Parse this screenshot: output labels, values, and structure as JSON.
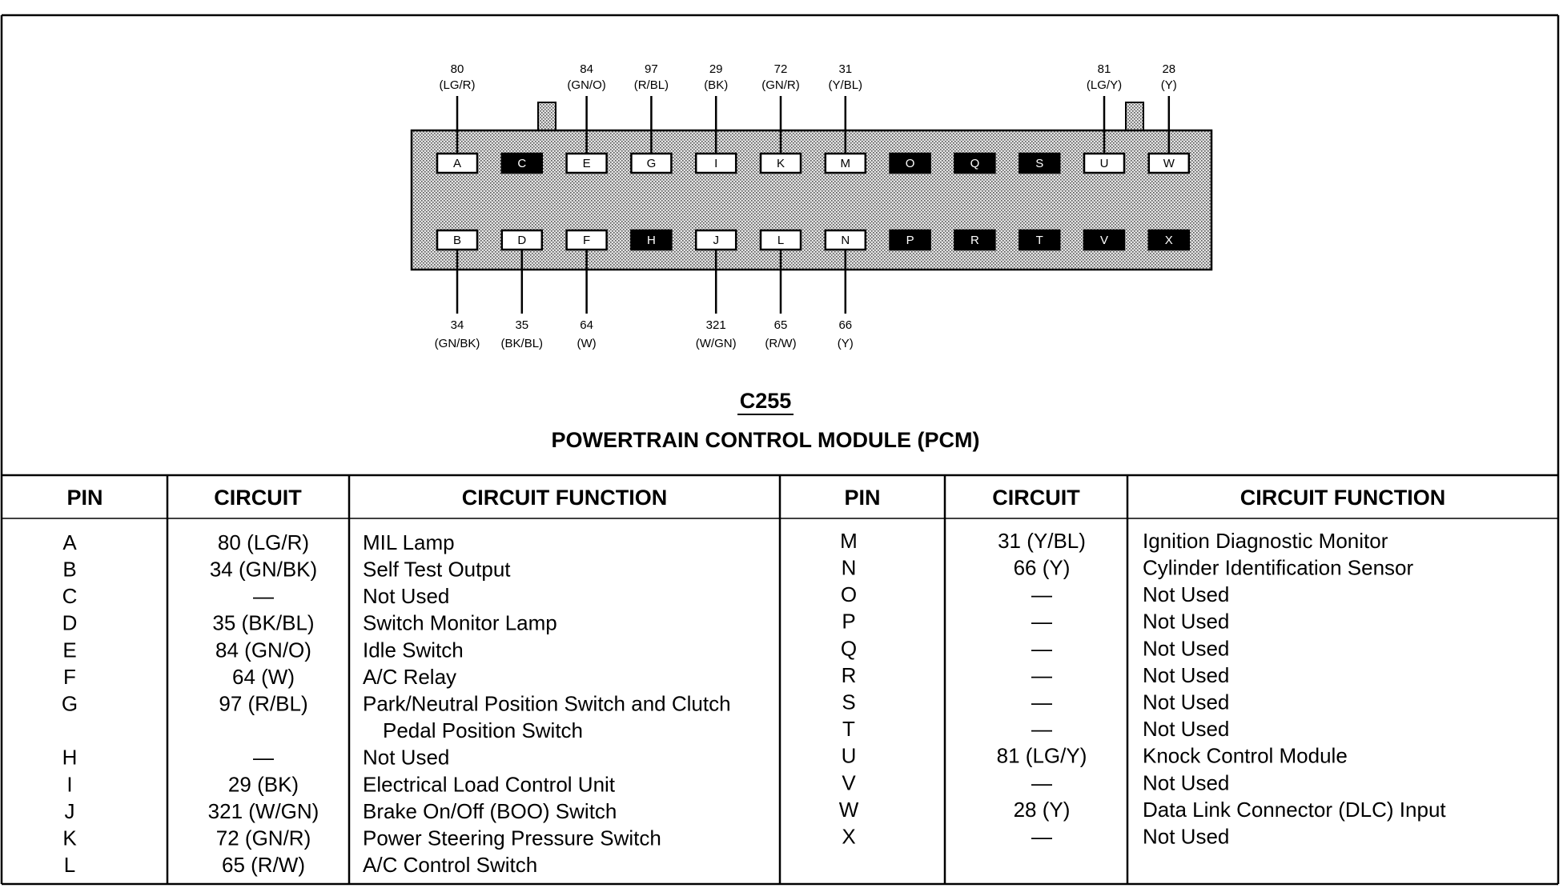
{
  "connector": {
    "name": "C255",
    "title": "POWERTRAIN CONTROL MODULE (PCM)",
    "top_row": [
      {
        "pin": "A",
        "wire": [
          "80",
          "(LG/R)"
        ]
      },
      {
        "pin": "C"
      },
      {
        "pin": "E",
        "wire": [
          "84",
          "(GN/O)"
        ]
      },
      {
        "pin": "G",
        "wire": [
          "97",
          "(R/BL)"
        ]
      },
      {
        "pin": "I",
        "wire": [
          "29",
          "(BK)"
        ]
      },
      {
        "pin": "K",
        "wire": [
          "72",
          "(GN/R)"
        ]
      },
      {
        "pin": "M",
        "wire": [
          "31",
          "(Y/BL)"
        ]
      },
      {
        "pin": "O"
      },
      {
        "pin": "Q"
      },
      {
        "pin": "S"
      },
      {
        "pin": "U",
        "wire": [
          "81",
          "(LG/Y)"
        ]
      },
      {
        "pin": "W",
        "wire": [
          "28",
          "(Y)"
        ]
      }
    ],
    "bottom_row": [
      {
        "pin": "B",
        "wire": [
          "34",
          "(GN/BK)"
        ]
      },
      {
        "pin": "D",
        "wire": [
          "35",
          "(BK/BL)"
        ]
      },
      {
        "pin": "F",
        "wire": [
          "64",
          "(W)"
        ]
      },
      {
        "pin": "H"
      },
      {
        "pin": "J",
        "wire": [
          "321",
          "(W/GN)"
        ]
      },
      {
        "pin": "L",
        "wire": [
          "65",
          "(R/W)"
        ]
      },
      {
        "pin": "N",
        "wire": [
          "66",
          "(Y)"
        ]
      },
      {
        "pin": "P"
      },
      {
        "pin": "R"
      },
      {
        "pin": "T"
      },
      {
        "pin": "V"
      },
      {
        "pin": "X"
      }
    ]
  },
  "table": {
    "headers": [
      "PIN",
      "CIRCUIT",
      "CIRCUIT FUNCTION",
      "PIN",
      "CIRCUIT",
      "CIRCUIT FUNCTION"
    ],
    "left_rows": [
      [
        "A",
        "80 (LG/R)",
        [
          "MIL Lamp"
        ]
      ],
      [
        "B",
        "34 (GN/BK)",
        [
          "Self Test Output"
        ]
      ],
      [
        "C",
        "—",
        [
          "Not Used"
        ]
      ],
      [
        "D",
        "35 (BK/BL)",
        [
          "Switch Monitor Lamp"
        ]
      ],
      [
        "E",
        "84 (GN/O)",
        [
          "Idle Switch"
        ]
      ],
      [
        "F",
        "64 (W)",
        [
          "A/C Relay"
        ]
      ],
      [
        "G",
        "97 (R/BL)",
        [
          "Park/Neutral Position Switch and Clutch",
          "Pedal Position Switch"
        ]
      ],
      [
        "H",
        "—",
        [
          "Not Used"
        ]
      ],
      [
        "I",
        "29 (BK)",
        [
          "Electrical Load Control Unit"
        ]
      ],
      [
        "J",
        "321 (W/GN)",
        [
          "Brake On/Off (BOO) Switch"
        ]
      ],
      [
        "K",
        "72 (GN/R)",
        [
          "Power Steering Pressure Switch"
        ]
      ],
      [
        "L",
        "65 (R/W)",
        [
          "A/C Control Switch"
        ]
      ]
    ],
    "right_rows": [
      [
        "M",
        "31 (Y/BL)",
        [
          "Ignition Diagnostic Monitor"
        ]
      ],
      [
        "N",
        "66 (Y)",
        [
          "Cylinder Identification Sensor"
        ]
      ],
      [
        "O",
        "—",
        [
          "Not Used"
        ]
      ],
      [
        "P",
        "—",
        [
          "Not Used"
        ]
      ],
      [
        "Q",
        "—",
        [
          "Not Used"
        ]
      ],
      [
        "R",
        "—",
        [
          "Not Used"
        ]
      ],
      [
        "S",
        "—",
        [
          "Not Used"
        ]
      ],
      [
        "T",
        "—",
        [
          "Not Used"
        ]
      ],
      [
        "U",
        "81 (LG/Y)",
        [
          "Knock Control Module"
        ]
      ],
      [
        "V",
        "—",
        [
          "Not Used"
        ]
      ],
      [
        "W",
        "28 (Y)",
        [
          "Data Link Connector (DLC) Input"
        ]
      ],
      [
        "X",
        "—",
        [
          "Not Used"
        ]
      ]
    ]
  }
}
